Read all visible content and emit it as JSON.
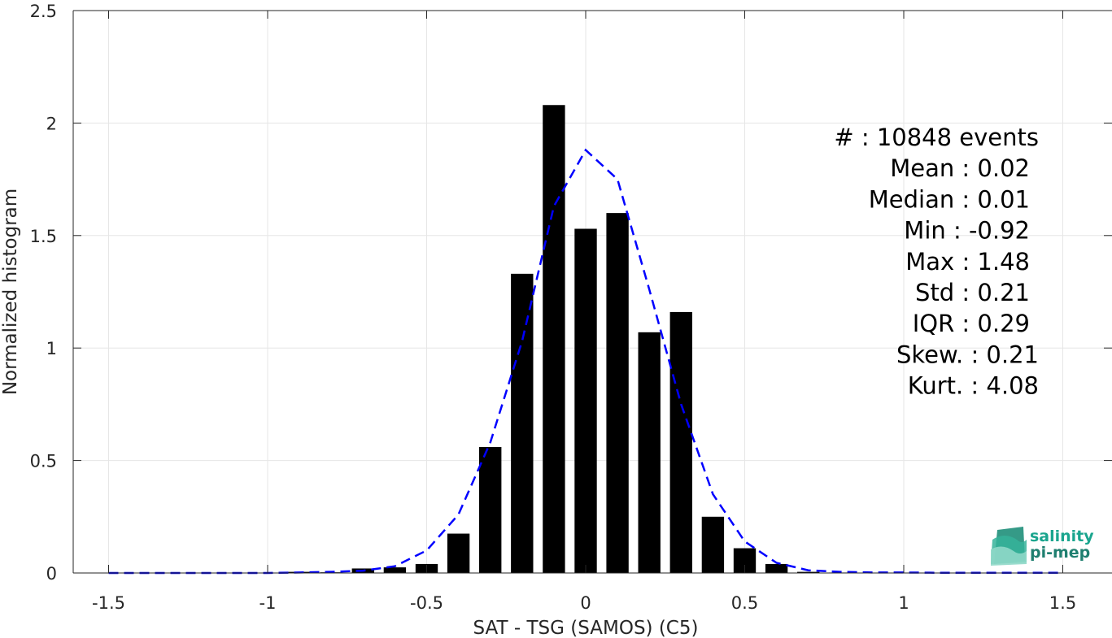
{
  "chart_data": {
    "type": "bar",
    "xlabel": "SAT - TSG (SAMOS) (C5)",
    "ylabel": "Normalized histogram",
    "xlim": [
      -1.6,
      1.6
    ],
    "ylim": [
      0,
      2.5
    ],
    "xticks": [
      -1.5,
      -1,
      -0.5,
      0,
      0.5,
      1,
      1.5
    ],
    "xtick_labels": [
      "-1.5",
      "-1",
      "-0.5",
      "0",
      "0.5",
      "1",
      "1.5"
    ],
    "yticks": [
      0,
      0.5,
      1,
      1.5,
      2,
      2.5
    ],
    "ytick_labels": [
      "0",
      "0.5",
      "1",
      "1.5",
      "2",
      "2.5"
    ],
    "grid": true,
    "bar_color": "#000000",
    "bar_width": 0.07,
    "bars": {
      "x": [
        -0.9,
        -0.8,
        -0.7,
        -0.6,
        -0.5,
        -0.4,
        -0.3,
        -0.2,
        -0.1,
        0.0,
        0.1,
        0.2,
        0.3,
        0.4,
        0.5,
        0.6,
        0.7,
        0.8,
        0.9,
        1.0,
        1.1,
        1.2,
        1.3,
        1.4,
        1.5
      ],
      "values": [
        0.005,
        0.003,
        0.02,
        0.025,
        0.04,
        0.175,
        0.56,
        1.33,
        2.08,
        1.53,
        1.6,
        1.07,
        1.16,
        0.25,
        0.11,
        0.04,
        0.005,
        0.002,
        0.0015,
        0.001,
        0.001,
        0.001,
        0.001,
        0.001,
        0.0015
      ]
    },
    "fit_curve": {
      "color": "#0000ff",
      "style": "dashed",
      "x": [
        -1.5,
        -1.4,
        -1.3,
        -1.2,
        -1.1,
        -1.0,
        -0.9,
        -0.8,
        -0.7,
        -0.6,
        -0.5,
        -0.4,
        -0.3,
        -0.2,
        -0.1,
        0.0,
        0.1,
        0.2,
        0.3,
        0.4,
        0.5,
        0.6,
        0.7,
        0.8,
        0.9,
        1.0,
        1.1,
        1.2,
        1.3,
        1.4,
        1.5
      ],
      "y": [
        0,
        0,
        0,
        0,
        0,
        0,
        0.002,
        0.005,
        0.01,
        0.03,
        0.1,
        0.26,
        0.58,
        1.03,
        1.63,
        1.88,
        1.75,
        1.26,
        0.75,
        0.35,
        0.14,
        0.045,
        0.012,
        0.005,
        0.002,
        0.002,
        0.001,
        0.001,
        0.001,
        0.001,
        0.001
      ]
    },
    "stats": [
      {
        "label": "#  : 10848 events",
        "align": "right-outer"
      },
      {
        "label": "Mean : 0.02",
        "align": "right"
      },
      {
        "label": "Median : 0.01",
        "align": "right"
      },
      {
        "label": "Min : -0.92",
        "align": "right"
      },
      {
        "label": "Max : 1.48",
        "align": "right"
      },
      {
        "label": "Std : 0.21",
        "align": "right"
      },
      {
        "label": "IQR : 0.29",
        "align": "right"
      },
      {
        "label": "Skew. : 0.21",
        "align": "right-outer"
      },
      {
        "label": "Kurt. : 4.08",
        "align": "right-outer"
      }
    ]
  },
  "logo": {
    "line1": "salinity",
    "line2": "pi-mep",
    "color": "#1aa58e"
  }
}
